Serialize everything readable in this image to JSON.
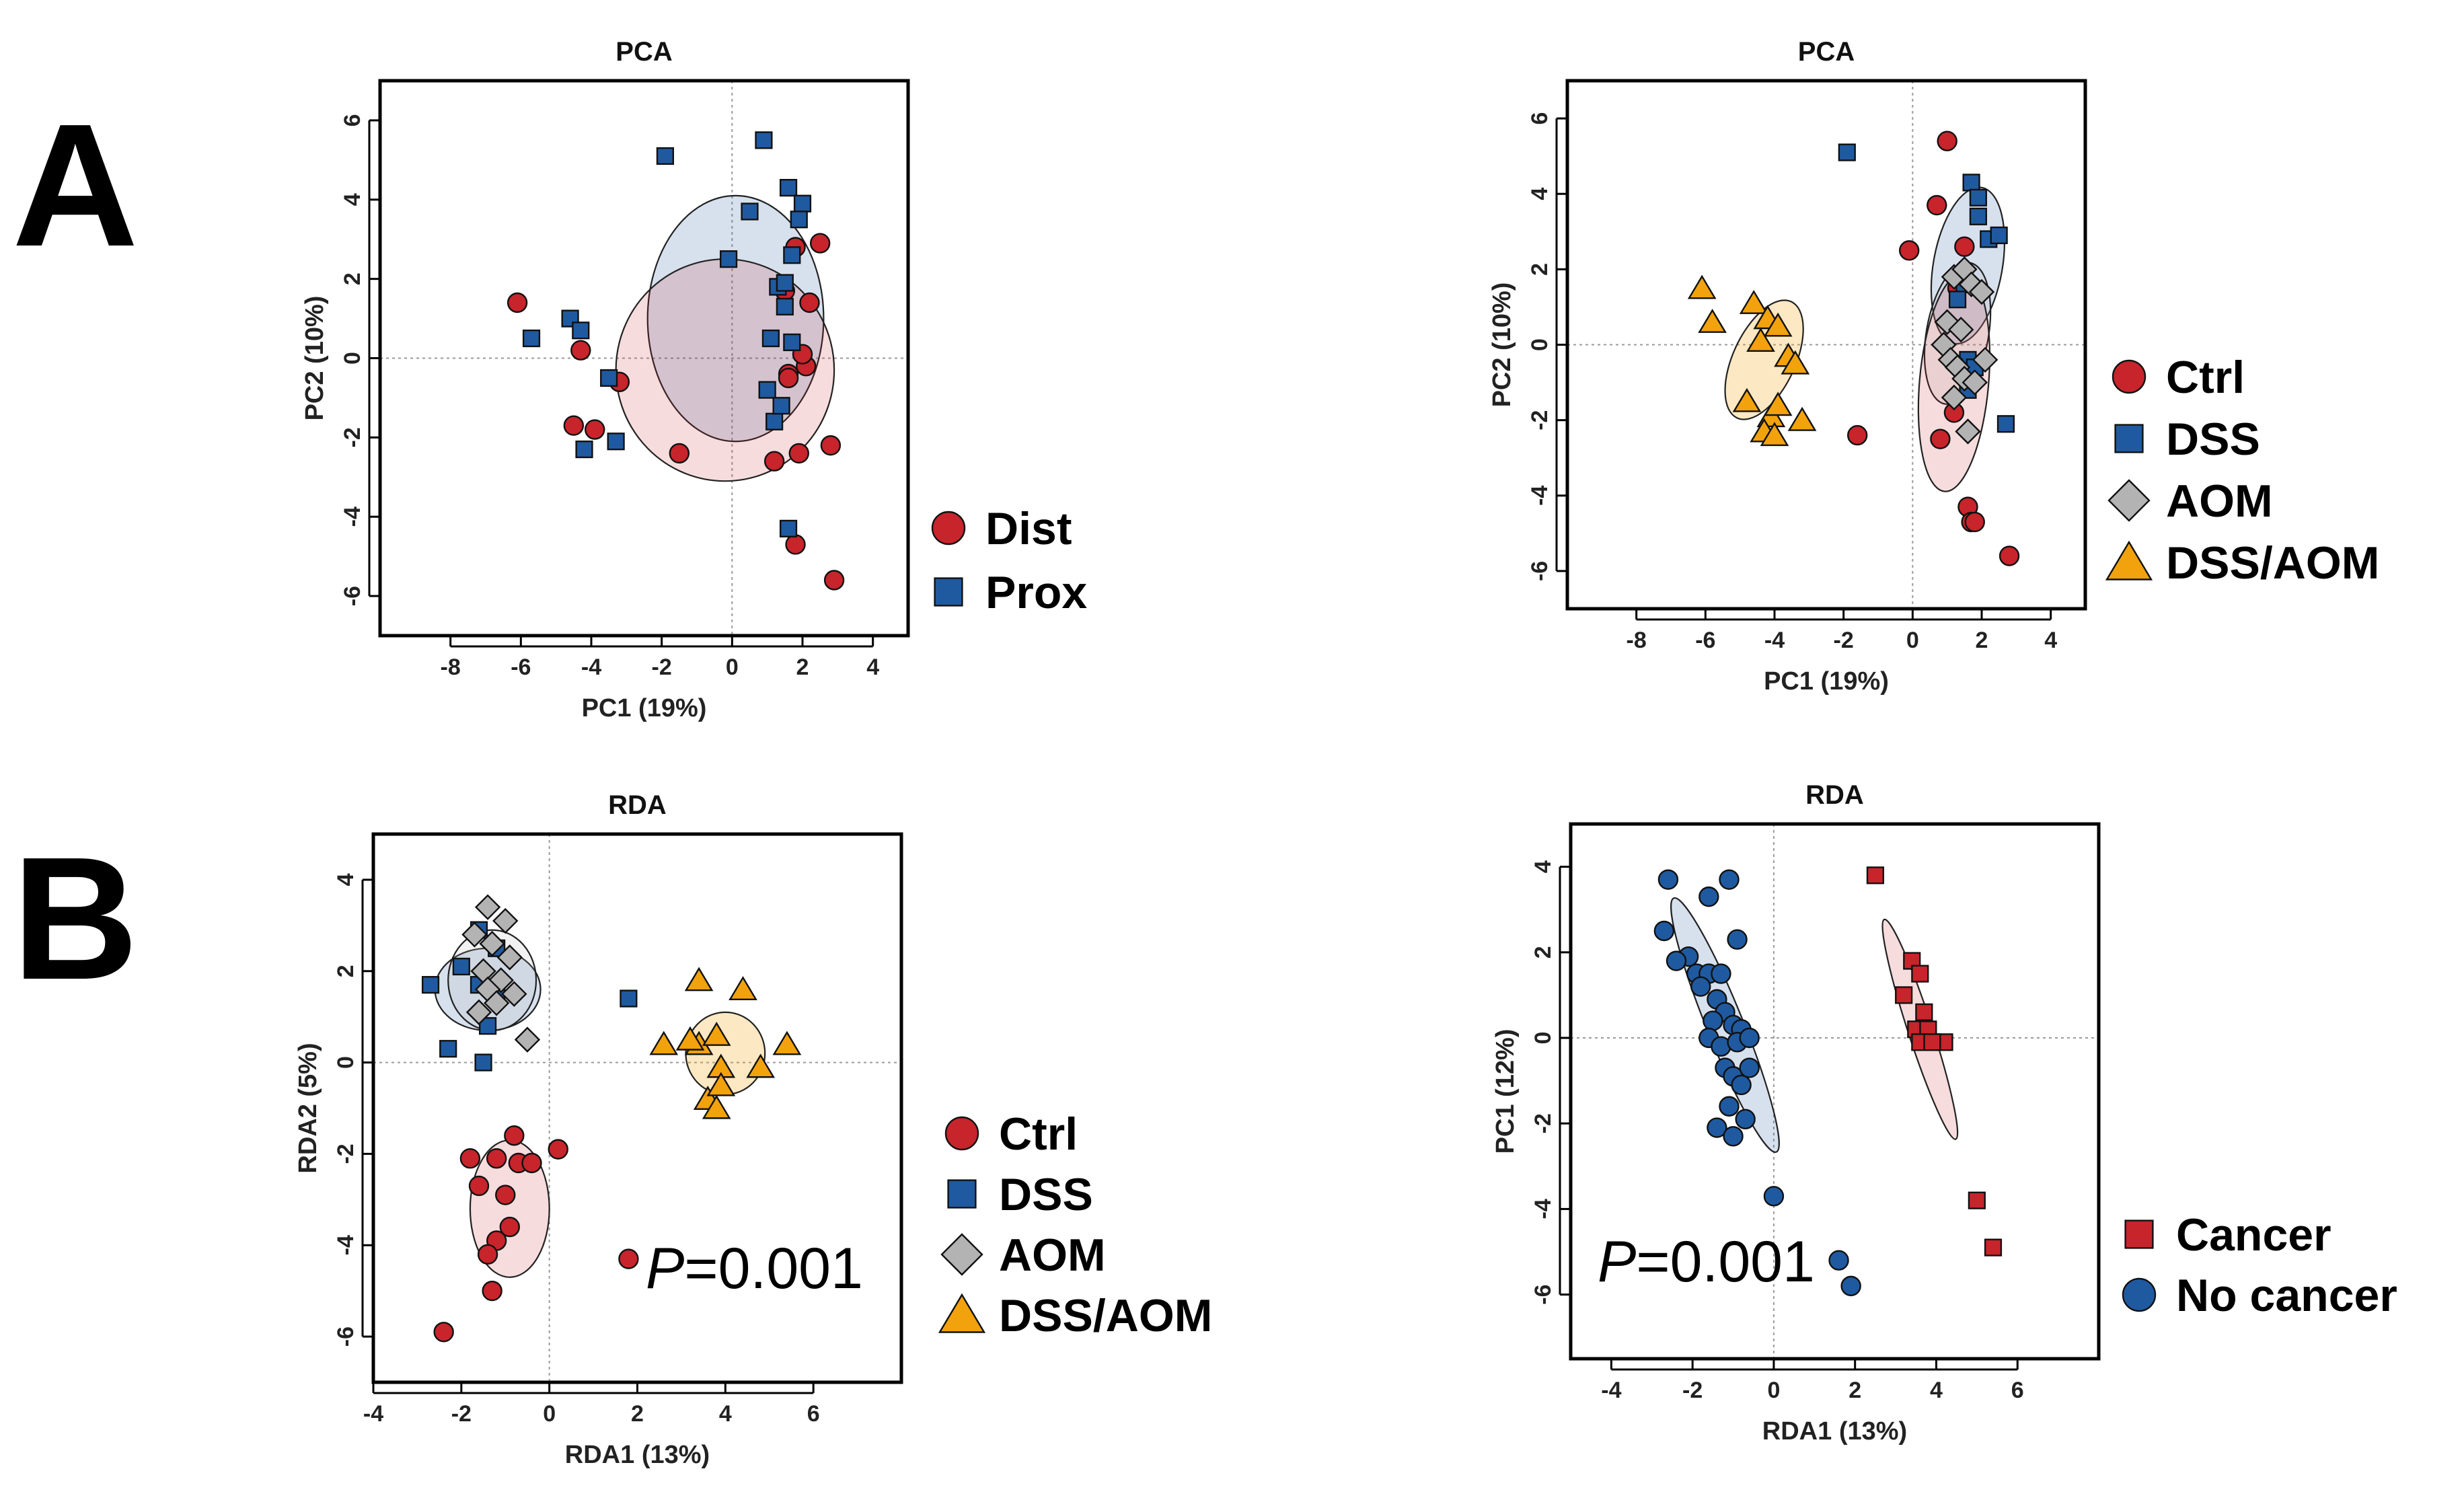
{
  "panel_labels": {
    "a": "A",
    "b": "B"
  },
  "colors": {
    "Ctrl": "#c8242b",
    "DSS": "#1f5aa0",
    "AOM": "#b3b3b3",
    "DSS/AOM": "#f2a20c",
    "Dist": "#c8242b",
    "Prox": "#1f5aa0",
    "Cancer": "#c8242b",
    "No cancer": "#1f5aa0"
  },
  "chart_data": [
    {
      "id": "A1",
      "type": "scatter",
      "title": "PCA",
      "xlabel": "PC1 (19%)",
      "ylabel": "PC2 (10%)",
      "xlim": [
        -10,
        5
      ],
      "ylim": [
        -7,
        7
      ],
      "xticks": [
        -8,
        -6,
        -4,
        -2,
        0,
        2,
        4
      ],
      "yticks": [
        -6,
        -4,
        -2,
        0,
        2,
        4,
        6
      ],
      "legend": [
        "Dist",
        "Prox"
      ],
      "p_value": null,
      "series": [
        {
          "name": "Dist",
          "marker": "circle",
          "x": [
            -6.1,
            -4.3,
            -3.2,
            -4.5,
            -3.9,
            -1.5,
            1.2,
            1.5,
            1.8,
            2.2,
            2.5,
            2.8,
            2.1,
            1.6,
            1.9,
            1.8,
            1.6,
            2.0,
            2.9
          ],
          "y": [
            1.4,
            0.2,
            -0.6,
            -1.7,
            -1.8,
            -2.4,
            -2.6,
            1.7,
            2.8,
            1.4,
            2.9,
            -2.2,
            -0.2,
            -0.4,
            -2.4,
            -4.7,
            -0.5,
            0.1,
            -5.6
          ]
        },
        {
          "name": "Prox",
          "marker": "square",
          "x": [
            -1.9,
            0.9,
            -0.1,
            0.5,
            1.6,
            2.0,
            1.9,
            1.7,
            1.3,
            1.5,
            1.5,
            1.1,
            1.7,
            1.0,
            -4.6,
            -4.3,
            -5.7,
            -3.5,
            -4.2,
            -3.3,
            1.2,
            1.4,
            1.6
          ],
          "y": [
            5.1,
            5.5,
            2.5,
            3.7,
            4.3,
            3.9,
            3.5,
            2.6,
            1.8,
            1.9,
            1.3,
            0.5,
            0.4,
            -0.8,
            1.0,
            0.7,
            0.5,
            -0.5,
            -2.3,
            -2.1,
            -1.6,
            -1.2,
            -4.3
          ]
        }
      ],
      "ellipses": [
        {
          "group": "Prox",
          "cx": 0.1,
          "cy": 1.0,
          "rx": 2.5,
          "ry": 3.1,
          "angle": 0
        },
        {
          "group": "Dist",
          "cx": -0.2,
          "cy": -0.3,
          "rx": 3.1,
          "ry": 2.8,
          "angle": 0
        }
      ]
    },
    {
      "id": "A2",
      "type": "scatter",
      "title": "PCA",
      "xlabel": "PC1 (19%)",
      "ylabel": "PC2 (10%)",
      "xlim": [
        -10,
        5
      ],
      "ylim": [
        -7,
        7
      ],
      "xticks": [
        -8,
        -6,
        -4,
        -2,
        0,
        2,
        4
      ],
      "yticks": [
        -6,
        -4,
        -2,
        0,
        2,
        4,
        6
      ],
      "legend": [
        "Ctrl",
        "DSS",
        "AOM",
        "DSS/AOM"
      ],
      "p_value": null,
      "series": [
        {
          "name": "Ctrl",
          "marker": "circle",
          "x": [
            1.0,
            0.7,
            -0.1,
            1.3,
            1.5,
            -1.6,
            0.8,
            1.2,
            1.6,
            1.7,
            1.8,
            2.8
          ],
          "y": [
            5.4,
            3.7,
            2.5,
            1.5,
            2.6,
            -2.4,
            -2.5,
            -1.8,
            -4.3,
            -4.7,
            -4.7,
            -5.6
          ]
        },
        {
          "name": "DSS",
          "marker": "square",
          "x": [
            -1.9,
            1.7,
            1.9,
            1.9,
            2.2,
            2.5,
            1.5,
            1.3,
            1.6,
            1.8,
            1.6,
            2.7
          ],
          "y": [
            5.1,
            4.3,
            3.9,
            3.4,
            2.8,
            2.9,
            1.6,
            1.2,
            -0.4,
            -0.6,
            -1.2,
            -2.1
          ]
        },
        {
          "name": "AOM",
          "marker": "diamond",
          "x": [
            1.2,
            1.5,
            1.7,
            2.0,
            1.0,
            1.4,
            0.9,
            1.1,
            1.3,
            1.5,
            1.8,
            1.2,
            2.1,
            1.6
          ],
          "y": [
            1.8,
            2.0,
            1.6,
            1.4,
            0.6,
            0.4,
            0.0,
            -0.4,
            -0.6,
            -0.9,
            -1.0,
            -1.4,
            -0.4,
            -2.3
          ]
        },
        {
          "name": "DSS/AOM",
          "marker": "triangle",
          "x": [
            -6.1,
            -5.8,
            -4.6,
            -4.2,
            -3.9,
            -4.4,
            -3.6,
            -3.4,
            -4.8,
            -4.1,
            -3.9,
            -3.2,
            -4.3,
            -4.0
          ],
          "y": [
            1.5,
            0.6,
            1.1,
            0.7,
            0.5,
            0.1,
            -0.3,
            -0.5,
            -1.5,
            -1.9,
            -1.6,
            -2.0,
            -2.3,
            -2.4
          ]
        }
      ],
      "ellipses": [
        {
          "group": "DSS",
          "cx": 1.6,
          "cy": 2.1,
          "rx": 1.0,
          "ry": 2.1,
          "angle": 10
        },
        {
          "group": "AOM",
          "cx": 1.3,
          "cy": 0.3,
          "rx": 0.9,
          "ry": 1.9,
          "angle": 10
        },
        {
          "group": "Ctrl",
          "cx": 1.2,
          "cy": -1.0,
          "rx": 1.0,
          "ry": 2.9,
          "angle": 5
        },
        {
          "group": "DSS/AOM",
          "cx": -4.3,
          "cy": -0.4,
          "rx": 0.9,
          "ry": 1.7,
          "angle": 25
        }
      ]
    },
    {
      "id": "B1",
      "type": "scatter",
      "title": "RDA",
      "xlabel": "RDA1 (13%)",
      "ylabel": "RDA2 (5%)",
      "xlim": [
        -4,
        8
      ],
      "ylim": [
        -7,
        5
      ],
      "xticks": [
        -4,
        -2,
        0,
        2,
        4,
        6
      ],
      "yticks": [
        -6,
        -4,
        -2,
        0,
        2,
        4
      ],
      "legend": [
        "Ctrl",
        "DSS",
        "AOM",
        "DSS/AOM"
      ],
      "p_value": "=0.001",
      "series": [
        {
          "name": "Ctrl",
          "marker": "circle",
          "x": [
            -0.8,
            -1.2,
            -0.7,
            -0.4,
            0.2,
            -1.8,
            -1.6,
            -1.0,
            -0.9,
            -1.2,
            -1.4,
            -1.3,
            1.8,
            -2.4
          ],
          "y": [
            -1.6,
            -2.1,
            -2.2,
            -2.2,
            -1.9,
            -2.1,
            -2.7,
            -2.9,
            -3.6,
            -3.9,
            -4.2,
            -5.0,
            -4.3,
            -5.9
          ]
        },
        {
          "name": "DSS",
          "marker": "square",
          "x": [
            -2.7,
            -1.6,
            -1.2,
            -2.0,
            -1.6,
            -1.2,
            -1.4,
            -2.3,
            -1.5,
            1.8
          ],
          "y": [
            1.7,
            2.9,
            2.5,
            2.1,
            1.7,
            1.5,
            0.8,
            0.3,
            0.0,
            1.4
          ]
        },
        {
          "name": "AOM",
          "marker": "diamond",
          "x": [
            -1.4,
            -1.0,
            -1.7,
            -1.3,
            -0.9,
            -1.5,
            -1.1,
            -1.4,
            -0.8,
            -1.2,
            -0.5,
            -1.6
          ],
          "y": [
            3.4,
            3.1,
            2.8,
            2.6,
            2.3,
            2.0,
            1.8,
            1.6,
            1.5,
            1.3,
            0.5,
            1.1
          ]
        },
        {
          "name": "DSS/AOM",
          "marker": "triangle",
          "x": [
            3.4,
            4.4,
            2.6,
            3.4,
            3.8,
            3.9,
            5.4,
            4.8,
            3.6,
            3.8,
            3.9,
            3.2
          ],
          "y": [
            1.8,
            1.6,
            0.4,
            0.4,
            0.6,
            -0.1,
            0.4,
            -0.1,
            -0.8,
            -1.0,
            -0.5,
            0.5
          ]
        }
      ],
      "ellipses": [
        {
          "group": "DSS",
          "cx": -1.4,
          "cy": 1.6,
          "rx": 1.2,
          "ry": 0.9,
          "angle": 0
        },
        {
          "group": "AOM",
          "cx": -1.3,
          "cy": 1.8,
          "rx": 1.0,
          "ry": 1.1,
          "angle": 0
        },
        {
          "group": "Ctrl",
          "cx": -0.9,
          "cy": -3.2,
          "rx": 0.9,
          "ry": 1.5,
          "angle": 0
        },
        {
          "group": "DSS/AOM",
          "cx": 4.0,
          "cy": 0.2,
          "rx": 0.9,
          "ry": 0.9,
          "angle": 0
        }
      ]
    },
    {
      "id": "B2",
      "type": "scatter",
      "title": "RDA",
      "xlabel": "RDA1 (13%)",
      "ylabel": "PC1 (12%)",
      "xlim": [
        -5,
        8
      ],
      "ylim": [
        -7.5,
        5
      ],
      "xticks": [
        -4,
        -2,
        0,
        2,
        4,
        6
      ],
      "yticks": [
        -6,
        -4,
        -2,
        0,
        2,
        4
      ],
      "legend": [
        "Cancer",
        "No cancer"
      ],
      "p_value": "=0.001",
      "series": [
        {
          "name": "Cancer",
          "marker": "square",
          "x": [
            2.5,
            3.4,
            3.6,
            3.2,
            3.7,
            3.5,
            3.8,
            3.6,
            4.2,
            3.9,
            5.0,
            5.4
          ],
          "y": [
            3.8,
            1.8,
            1.5,
            1.0,
            0.6,
            0.2,
            0.2,
            -0.1,
            -0.1,
            -0.1,
            -3.8,
            -4.9
          ]
        },
        {
          "name": "No cancer",
          "marker": "circle",
          "x": [
            -2.6,
            -1.6,
            -1.1,
            -0.9,
            -2.7,
            -2.1,
            -1.9,
            -1.6,
            -1.3,
            -2.4,
            -1.8,
            -1.4,
            -1.2,
            -1.5,
            -1.0,
            -0.8,
            -1.6,
            -1.3,
            -0.9,
            -0.6,
            -1.2,
            -1.0,
            -0.6,
            -0.8,
            -1.1,
            -0.7,
            -1.4,
            -1.0,
            0.0,
            1.6,
            1.9
          ],
          "y": [
            3.7,
            3.3,
            3.7,
            2.3,
            2.5,
            1.9,
            1.5,
            1.5,
            1.5,
            1.8,
            1.2,
            0.9,
            0.6,
            0.4,
            0.3,
            0.2,
            0.0,
            -0.2,
            -0.1,
            0.0,
            -0.7,
            -0.9,
            -0.7,
            -1.1,
            -1.6,
            -1.9,
            -2.1,
            -2.3,
            -3.7,
            -5.2,
            -5.8
          ]
        }
      ],
      "ellipses": [
        {
          "group": "No cancer",
          "cx": -1.2,
          "cy": 0.3,
          "rx": 0.45,
          "ry": 3.2,
          "angle": -22
        },
        {
          "group": "Cancer",
          "cx": 3.6,
          "cy": 0.2,
          "rx": 0.3,
          "ry": 2.7,
          "angle": -18
        }
      ]
    }
  ]
}
